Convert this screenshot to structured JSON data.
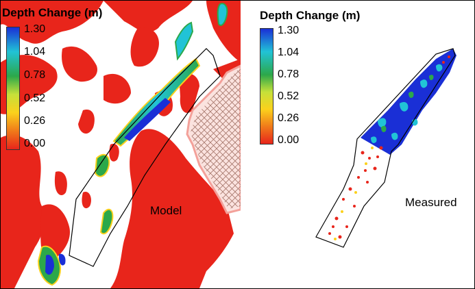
{
  "left_panel": {
    "label": "Model",
    "legend": {
      "title": "Depth Change (m)",
      "ticks": [
        "1.30",
        "1.04",
        "0.78",
        "0.52",
        "0.26",
        "0.00"
      ]
    }
  },
  "right_panel": {
    "label": "Measured",
    "legend": {
      "title": "Depth Change (m)",
      "ticks": [
        "1.30",
        "1.04",
        "0.78",
        "0.52",
        "0.26",
        "0.00"
      ]
    }
  },
  "colors": {
    "low": "#e8251b",
    "high": "#1a2fd6",
    "grid": "#a5766a",
    "outline": "#000000"
  }
}
